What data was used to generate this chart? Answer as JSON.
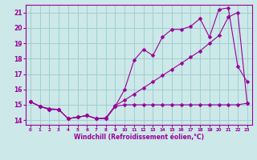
{
  "x_values": [
    0,
    1,
    2,
    3,
    4,
    5,
    6,
    7,
    8,
    9,
    10,
    11,
    12,
    13,
    14,
    15,
    16,
    17,
    18,
    19,
    20,
    21,
    22,
    23
  ],
  "line_flat_y": [
    15.2,
    14.9,
    14.7,
    14.7,
    14.1,
    14.2,
    14.3,
    14.1,
    14.1,
    14.9,
    15.0,
    15.0,
    15.0,
    15.0,
    15.0,
    15.0,
    15.0,
    15.0,
    15.0,
    15.0,
    15.0,
    15.0,
    15.0,
    15.1
  ],
  "line_peak_y": [
    15.2,
    14.9,
    14.7,
    14.7,
    14.1,
    14.2,
    14.3,
    14.1,
    14.1,
    14.9,
    16.0,
    17.9,
    18.6,
    18.2,
    19.4,
    19.9,
    19.9,
    20.1,
    20.6,
    19.4,
    21.2,
    21.3,
    17.5,
    16.5
  ],
  "line_diag_y": [
    15.2,
    14.9,
    14.75,
    14.7,
    14.1,
    14.2,
    14.3,
    14.1,
    14.15,
    14.95,
    15.3,
    15.7,
    16.1,
    16.5,
    16.9,
    17.3,
    17.7,
    18.1,
    18.5,
    19.0,
    19.5,
    20.7,
    21.0,
    15.1
  ],
  "color": "#990099",
  "bg_color": "#cce8e8",
  "grid_color": "#99cccc",
  "xlabel": "Windchill (Refroidissement éolien,°C)",
  "ylim": [
    13.7,
    21.5
  ],
  "xlim": [
    -0.5,
    23.5
  ],
  "yticks": [
    14,
    15,
    16,
    17,
    18,
    19,
    20,
    21
  ],
  "xticks": [
    0,
    1,
    2,
    3,
    4,
    5,
    6,
    7,
    8,
    9,
    10,
    11,
    12,
    13,
    14,
    15,
    16,
    17,
    18,
    19,
    20,
    21,
    22,
    23
  ],
  "marker": "D",
  "markersize": 2.5,
  "linewidth": 0.8
}
